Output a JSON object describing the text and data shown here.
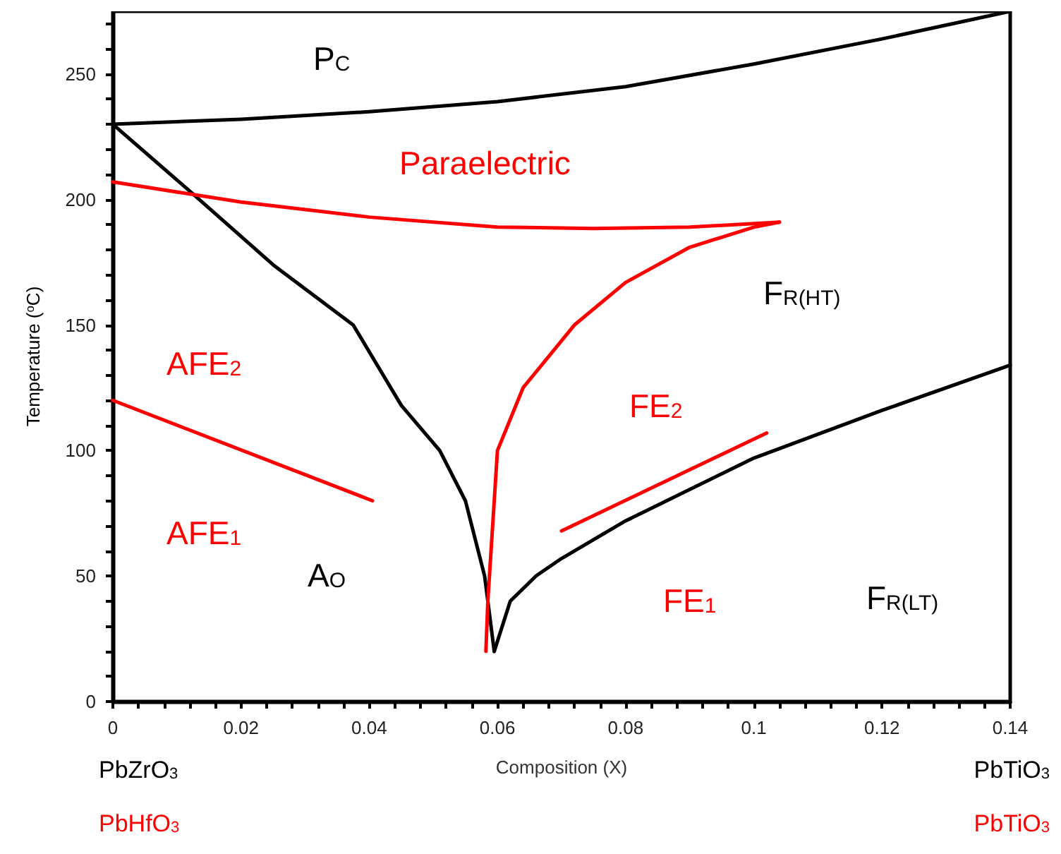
{
  "chart_data": {
    "type": "line",
    "xlabel": "Composition (X)",
    "ylabel": "Temperature ($^{o}$C)",
    "xlim": [
      0,
      0.14
    ],
    "ylim": [
      0,
      275
    ],
    "xticks": [
      0,
      {
        "value": 0.004,
        "label": null
      },
      {
        "value": 0.008,
        "label": null
      },
      {
        "value": 0.012,
        "label": null
      },
      {
        "value": 0.016,
        "label": null
      },
      0.02,
      {
        "value": 0.024,
        "label": null
      },
      {
        "value": 0.028,
        "label": null
      },
      {
        "value": 0.032,
        "label": null
      },
      {
        "value": 0.036,
        "label": null
      },
      0.04,
      {
        "value": 0.044,
        "label": null
      },
      {
        "value": 0.048,
        "label": null
      },
      {
        "value": 0.052,
        "label": null
      },
      {
        "value": 0.056,
        "label": null
      },
      0.06,
      {
        "value": 0.064,
        "label": null
      },
      {
        "value": 0.068,
        "label": null
      },
      {
        "value": 0.072,
        "label": null
      },
      {
        "value": 0.076,
        "label": null
      },
      0.08,
      {
        "value": 0.084,
        "label": null
      },
      {
        "value": 0.088,
        "label": null
      },
      {
        "value": 0.092,
        "label": null
      },
      {
        "value": 0.096,
        "label": null
      },
      0.1,
      {
        "value": 0.104,
        "label": null
      },
      {
        "value": 0.108,
        "label": null
      },
      {
        "value": 0.112,
        "label": null
      },
      {
        "value": 0.116,
        "label": null
      },
      0.12,
      {
        "value": 0.124,
        "label": null
      },
      {
        "value": 0.128,
        "label": null
      },
      {
        "value": 0.132,
        "label": null
      },
      {
        "value": 0.136,
        "label": null
      },
      0.14
    ],
    "yticks": [
      0,
      {
        "value": 10,
        "label": null
      },
      {
        "value": 20,
        "label": null
      },
      {
        "value": 30,
        "label": null
      },
      {
        "value": 40,
        "label": null
      },
      50,
      {
        "value": 60,
        "label": null
      },
      {
        "value": 70,
        "label": null
      },
      {
        "value": 80,
        "label": null
      },
      {
        "value": 90,
        "label": null
      },
      100,
      {
        "value": 110,
        "label": null
      },
      {
        "value": 120,
        "label": null
      },
      {
        "value": 130,
        "label": null
      },
      {
        "value": 140,
        "label": null
      },
      150,
      {
        "value": 160,
        "label": null
      },
      {
        "value": 170,
        "label": null
      },
      {
        "value": 180,
        "label": null
      },
      {
        "value": 190,
        "label": null
      },
      200,
      {
        "value": 210,
        "label": null
      },
      {
        "value": 220,
        "label": null
      },
      {
        "value": 230,
        "label": null
      },
      {
        "value": 240,
        "label": null
      },
      250,
      {
        "value": 260,
        "label": null
      },
      {
        "value": 270,
        "label": null
      }
    ],
    "grid": false,
    "marker": "none",
    "line_style": "solid",
    "series": [
      {
        "color": "#000000",
        "x": [
          0,
          0.02,
          0.04,
          0.06,
          0.08,
          0.1,
          0.12,
          0.14
        ],
        "values": [
          230,
          232,
          235,
          239,
          245,
          254,
          264,
          275
        ]
      },
      {
        "color": "#000000",
        "x": [
          0,
          0.0126,
          0.025,
          0.0375,
          0.045,
          0.051,
          0.055,
          0.058,
          0.0595
        ],
        "values": [
          230,
          202,
          174,
          150,
          118,
          100,
          80,
          50,
          20
        ]
      },
      {
        "color": "#000000",
        "x": [
          0.0595,
          0.062,
          0.066,
          0.07,
          0.08,
          0.1,
          0.12,
          0.14
        ],
        "values": [
          20,
          40,
          50,
          57,
          72,
          97,
          116,
          134
        ]
      },
      {
        "color": "#ff0000",
        "x": [
          0,
          0.02,
          0.04,
          0.06,
          0.075,
          0.09,
          0.104
        ],
        "values": [
          207,
          199,
          193,
          189,
          188.5,
          189,
          191
        ]
      },
      {
        "color": "#ff0000",
        "x": [
          0.0582,
          0.0585,
          0.059,
          0.06,
          0.064,
          0.072,
          0.08,
          0.09,
          0.1,
          0.104
        ],
        "values": [
          20,
          40,
          60,
          100,
          125,
          150,
          167,
          181,
          189,
          191
        ]
      },
      {
        "color": "#ff0000",
        "x": [
          0,
          0.0405
        ],
        "values": [
          120,
          80
        ]
      },
      {
        "color": "#ff0000",
        "x": [
          0.07,
          0.102
        ],
        "values": [
          68,
          107
        ]
      }
    ],
    "annotations": [
      "P$_{C}$",
      "Paraelectric",
      "F$_{R(HT)}$",
      "AFE$_{2}$",
      "FE$_{2}$",
      "AFE$_{1}$",
      "A$_{O}$",
      "FE$_{1}$",
      "F$_{R(LT)}$",
      "PbZrO$_{3}$",
      "PbTiO$_{3}$",
      "PbHfO$_{3}$",
      "PbTiO$_{3}$"
    ]
  }
}
